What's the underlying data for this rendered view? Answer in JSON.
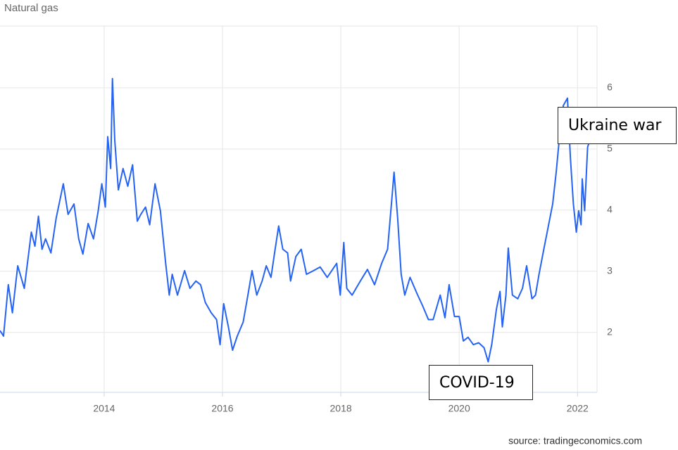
{
  "chart_data": {
    "type": "line",
    "title": "Natural gas",
    "source": "source: tradingeconomics.com",
    "annotations": [
      "Ukraine war",
      "COVID-19"
    ],
    "xlim": [
      2012.24,
      2022.33
    ],
    "xticks": [
      2014,
      2016,
      2018,
      2020,
      2022
    ],
    "ylim": [
      1.02,
      7.01
    ],
    "yticks": [
      2,
      3,
      4,
      5,
      6
    ],
    "grid": true,
    "series": [
      {
        "name": "Natural gas",
        "color": "#2563f5",
        "x": [
          2012.24,
          2012.3,
          2012.38,
          2012.45,
          2012.54,
          2012.65,
          2012.77,
          2012.83,
          2012.89,
          2012.95,
          2013.01,
          2013.1,
          2013.19,
          2013.31,
          2013.39,
          2013.49,
          2013.57,
          2013.64,
          2013.73,
          2013.82,
          2013.9,
          2013.96,
          2014.02,
          2014.06,
          2014.11,
          2014.14,
          2014.18,
          2014.24,
          2014.32,
          2014.4,
          2014.48,
          2014.56,
          2014.62,
          2014.7,
          2014.77,
          2014.86,
          2014.95,
          2015.04,
          2015.1,
          2015.15,
          2015.24,
          2015.36,
          2015.45,
          2015.55,
          2015.63,
          2015.71,
          2015.81,
          2015.9,
          2015.96,
          2016.02,
          2016.1,
          2016.17,
          2016.25,
          2016.35,
          2016.43,
          2016.5,
          2016.58,
          2016.67,
          2016.74,
          2016.82,
          2016.88,
          2016.95,
          2017.02,
          2017.1,
          2017.15,
          2017.24,
          2017.33,
          2017.42,
          2017.54,
          2017.65,
          2017.77,
          2017.93,
          2017.99,
          2018.05,
          2018.1,
          2018.19,
          2018.33,
          2018.45,
          2018.57,
          2018.69,
          2018.79,
          2018.86,
          2018.9,
          2018.96,
          2019.02,
          2019.08,
          2019.17,
          2019.29,
          2019.38,
          2019.48,
          2019.56,
          2019.68,
          2019.76,
          2019.83,
          2019.92,
          2020.0,
          2020.07,
          2020.15,
          2020.24,
          2020.33,
          2020.42,
          2020.49,
          2020.55,
          2020.63,
          2020.69,
          2020.73,
          2020.79,
          2020.83,
          2020.9,
          2020.99,
          2021.07,
          2021.14,
          2021.23,
          2021.29,
          2021.35,
          2021.43,
          2021.5,
          2021.58,
          2021.64,
          2021.7,
          2021.76,
          2021.83,
          2021.88,
          2021.93,
          2021.98,
          2022.02,
          2022.06,
          2022.08,
          2022.12,
          2022.17,
          2022.21
        ],
        "values": [
          2.03,
          1.94,
          2.78,
          2.32,
          3.09,
          2.72,
          3.64,
          3.41,
          3.9,
          3.36,
          3.53,
          3.3,
          3.87,
          4.43,
          3.93,
          4.1,
          3.53,
          3.28,
          3.78,
          3.53,
          3.99,
          4.43,
          4.05,
          5.2,
          4.68,
          6.15,
          5.14,
          4.33,
          4.68,
          4.39,
          4.74,
          3.82,
          3.93,
          4.05,
          3.76,
          4.43,
          3.99,
          3.13,
          2.61,
          2.95,
          2.61,
          3.01,
          2.72,
          2.84,
          2.78,
          2.49,
          2.32,
          2.21,
          1.8,
          2.47,
          2.09,
          1.71,
          1.94,
          2.17,
          2.61,
          3.01,
          2.61,
          2.84,
          3.09,
          2.9,
          3.3,
          3.74,
          3.36,
          3.3,
          2.84,
          3.24,
          3.36,
          2.95,
          3.01,
          3.07,
          2.9,
          3.13,
          2.61,
          3.47,
          2.72,
          2.61,
          2.84,
          3.03,
          2.78,
          3.13,
          3.36,
          4.16,
          4.62,
          3.87,
          2.95,
          2.61,
          2.9,
          2.63,
          2.44,
          2.21,
          2.21,
          2.61,
          2.24,
          2.78,
          2.26,
          2.26,
          1.86,
          1.92,
          1.8,
          1.83,
          1.75,
          1.52,
          1.8,
          2.38,
          2.67,
          2.09,
          2.61,
          3.38,
          2.61,
          2.55,
          2.72,
          3.09,
          2.55,
          2.61,
          2.95,
          3.36,
          3.7,
          4.1,
          4.62,
          5.25,
          5.71,
          5.83,
          4.85,
          4.1,
          3.64,
          3.99,
          3.76,
          4.51,
          3.99,
          5.03,
          5.14
        ]
      }
    ]
  }
}
